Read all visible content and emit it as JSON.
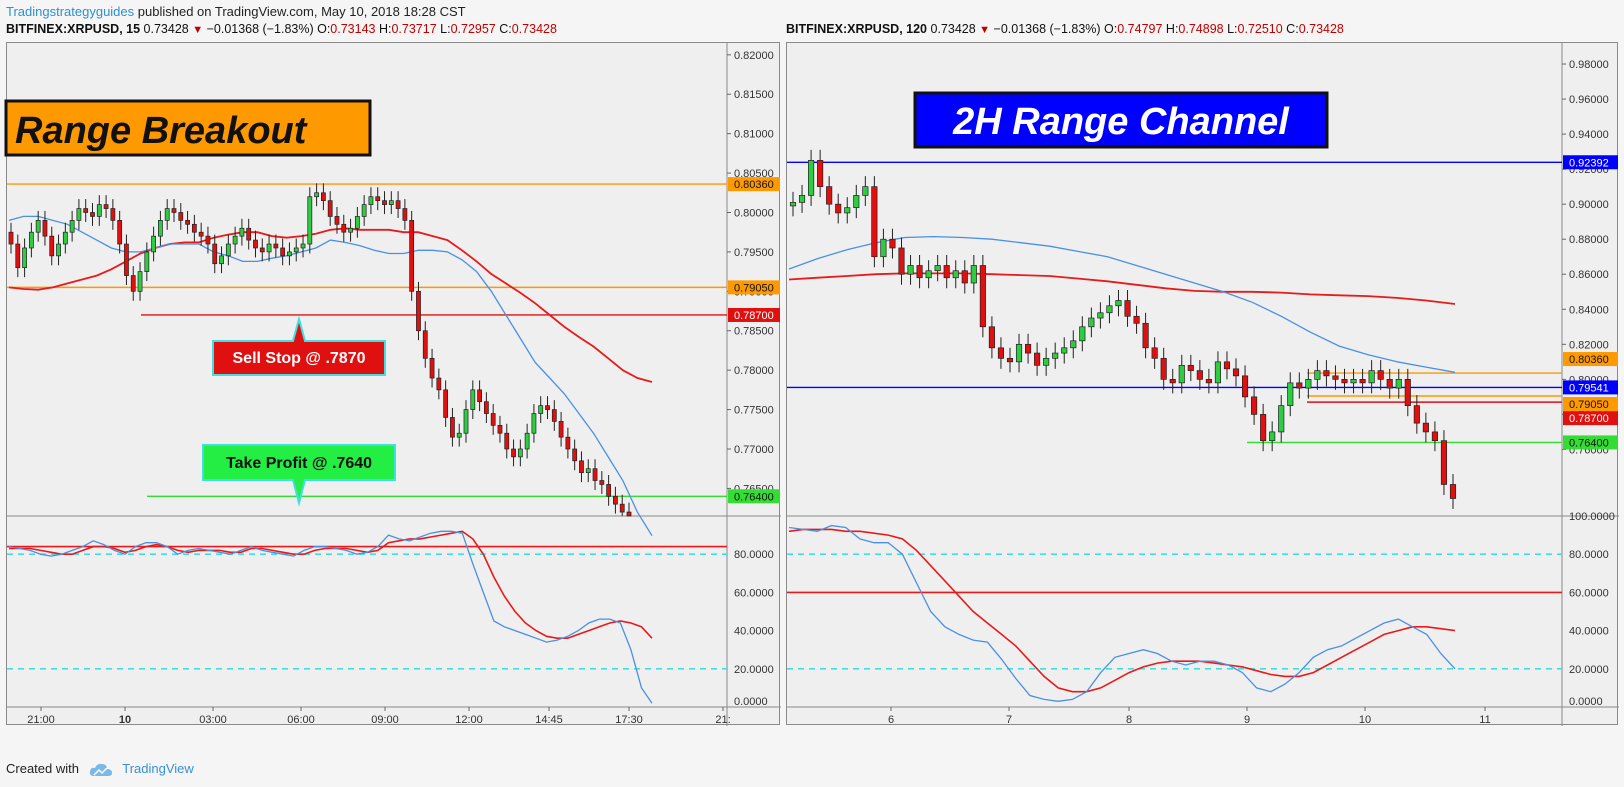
{
  "header": {
    "brand": "Tradingstrategyguides",
    "text": " published on TradingView.com, May 10, 2018 18:28 CST"
  },
  "left": {
    "symbol": "BITFINEX:XRPUSD, 15",
    "price": "0.73428",
    "change": "−0.01368 (−1.83%)",
    "ohlc": {
      "O": "0.73143",
      "H": "0.73717",
      "L": "0.72957",
      "C": "0.73428"
    }
  },
  "right": {
    "symbol": "BITFINEX:XRPUSD, 120",
    "price": "0.73428",
    "change": "−0.01368 (−1.83%)",
    "ohlc": {
      "O": "0.74797",
      "H": "0.74898",
      "L": "0.72510",
      "C": "0.73428"
    }
  },
  "footer": {
    "created": "Created with",
    "tv": "TradingView"
  },
  "colors": {
    "up": "#2ecc40",
    "down": "#e01010",
    "ma_fast": "#4a90e2",
    "ma_slow": "#e81a1a",
    "orange": "#ff9900",
    "blue": "#0000ff",
    "green": "#33dd33",
    "cyan": "#40e0e0"
  },
  "chart_data": [
    {
      "type": "candlestick",
      "title": "Range Breakout",
      "interval": "15",
      "ylim": [
        0.7615,
        0.8215
      ],
      "yticks": [
        "0.82000",
        "0.81500",
        "0.81000",
        "0.80500",
        "0.80000",
        "0.79500",
        "0.79000",
        "0.78500",
        "0.78000",
        "0.77500",
        "0.77000",
        "0.76500"
      ],
      "xticks": [
        "21:00",
        "10",
        "03:00",
        "06:00",
        "09:00",
        "12:00",
        "14:45",
        "17:30",
        "21:"
      ],
      "levels": [
        {
          "value": 0.8036,
          "label": "0.80360",
          "color": "#ff9900"
        },
        {
          "value": 0.7905,
          "label": "0.79050",
          "color": "#ff9900"
        },
        {
          "value": 0.787,
          "label": "0.78700",
          "color": "#e01010"
        },
        {
          "value": 0.764,
          "label": "0.76400",
          "color": "#33dd33"
        }
      ],
      "annotations": [
        "Sell Stop @ .7870",
        "Take Profit @ .7640"
      ],
      "closes": [
        0.796,
        0.793,
        0.7955,
        0.7975,
        0.799,
        0.797,
        0.7945,
        0.796,
        0.7975,
        0.799,
        0.8005,
        0.8,
        0.7995,
        0.801,
        0.8005,
        0.799,
        0.796,
        0.792,
        0.79,
        0.7925,
        0.795,
        0.797,
        0.799,
        0.8005,
        0.8,
        0.799,
        0.7985,
        0.7975,
        0.797,
        0.796,
        0.7935,
        0.7945,
        0.796,
        0.797,
        0.798,
        0.7965,
        0.7955,
        0.795,
        0.796,
        0.7955,
        0.7945,
        0.795,
        0.7955,
        0.796,
        0.802,
        0.8025,
        0.8015,
        0.7995,
        0.7985,
        0.7975,
        0.798,
        0.7995,
        0.801,
        0.802,
        0.8015,
        0.801,
        0.8015,
        0.8005,
        0.799,
        0.79,
        0.785,
        0.7815,
        0.779,
        0.7775,
        0.774,
        0.7715,
        0.772,
        0.775,
        0.7775,
        0.776,
        0.7745,
        0.773,
        0.772,
        0.77,
        0.769,
        0.77,
        0.772,
        0.7745,
        0.7755,
        0.775,
        0.7735,
        0.7715,
        0.77,
        0.7685,
        0.767,
        0.7675,
        0.766,
        0.7655,
        0.764,
        0.763,
        0.762,
        0.7615
      ],
      "ma_fast": [
        0.799,
        0.7995,
        0.7995,
        0.799,
        0.7985,
        0.7975,
        0.7965,
        0.7955,
        0.795,
        0.795,
        0.7955,
        0.796,
        0.796,
        0.796,
        0.795,
        0.7945,
        0.7938,
        0.7938,
        0.7942,
        0.7945,
        0.795,
        0.7955,
        0.7965,
        0.7962,
        0.7958,
        0.7952,
        0.7948,
        0.7948,
        0.7952,
        0.7952,
        0.795,
        0.794,
        0.7925,
        0.79,
        0.787,
        0.784,
        0.781,
        0.779,
        0.777,
        0.7745,
        0.772,
        0.769,
        0.766,
        0.762,
        0.759
      ],
      "ma_slow": [
        0.7905,
        0.7903,
        0.7902,
        0.7905,
        0.791,
        0.7915,
        0.792,
        0.7928,
        0.7938,
        0.7948,
        0.7955,
        0.796,
        0.7962,
        0.7962,
        0.7968,
        0.7972,
        0.7975,
        0.7975,
        0.797,
        0.7968,
        0.797,
        0.7973,
        0.7978,
        0.798,
        0.7978,
        0.7978,
        0.7978,
        0.7975,
        0.7975,
        0.797,
        0.7965,
        0.7952,
        0.7938,
        0.7922,
        0.791,
        0.7898,
        0.7885,
        0.787,
        0.7855,
        0.7842,
        0.783,
        0.7815,
        0.78,
        0.779,
        0.7785
      ],
      "oscillator": {
        "ylim": [
          0,
          100
        ],
        "yticks": [
          "80.0000",
          "60.0000",
          "40.0000",
          "20.0000",
          "0.0000"
        ],
        "levels": [
          20,
          80,
          84
        ],
        "k": [
          84,
          83,
          82,
          80,
          79,
          80,
          82,
          84,
          87,
          85,
          82,
          80,
          84,
          86,
          86,
          84,
          80,
          82,
          83,
          82,
          81,
          80,
          82,
          84,
          82,
          81,
          80,
          79,
          82,
          84,
          84,
          83,
          82,
          80,
          81,
          84,
          90,
          88,
          87,
          89,
          91,
          92,
          92,
          91,
          75,
          60,
          45,
          42,
          40,
          38,
          36,
          34,
          35,
          37,
          40,
          44,
          46,
          46,
          44,
          30,
          10,
          2
        ],
        "d": [
          83,
          83,
          83,
          82,
          81,
          80,
          80,
          82,
          84,
          84,
          83,
          81,
          82,
          84,
          85,
          84,
          82,
          81,
          82,
          82,
          82,
          81,
          81,
          83,
          83,
          82,
          81,
          80,
          80,
          82,
          83,
          83,
          83,
          82,
          81,
          82,
          86,
          87,
          88,
          88,
          89,
          90,
          91,
          92,
          88,
          80,
          68,
          58,
          50,
          44,
          40,
          37,
          36,
          36,
          38,
          40,
          42,
          44,
          45,
          44,
          42,
          36
        ]
      }
    },
    {
      "type": "candlestick",
      "title": "2H Range Channel",
      "interval": "120",
      "ylim": [
        0.722,
        0.992
      ],
      "yticks": [
        "0.98000",
        "0.96000",
        "0.94000",
        "0.92000",
        "0.90000",
        "0.88000",
        "0.86000",
        "0.84000",
        "0.82000",
        "0.80000",
        "0.78000",
        "0.76000"
      ],
      "xticks": [
        "6",
        "7",
        "8",
        "9",
        "10",
        "11"
      ],
      "levels": [
        {
          "value": 0.92392,
          "label": "0.92392",
          "color": "#0000ff"
        },
        {
          "value": 0.8036,
          "label": "0.80360",
          "color": "#ff9900"
        },
        {
          "value": 0.79541,
          "label": "0.79541",
          "color": "#0000ff"
        },
        {
          "value": 0.7905,
          "label": "0.79050",
          "color": "#ff9900"
        },
        {
          "value": 0.787,
          "label": "0.78700",
          "color": "#e01010"
        },
        {
          "value": 0.764,
          "label": "0.76400",
          "color": "#33dd33"
        }
      ],
      "closes": [
        0.901,
        0.905,
        0.925,
        0.91,
        0.9,
        0.895,
        0.898,
        0.905,
        0.91,
        0.87,
        0.88,
        0.875,
        0.86,
        0.865,
        0.858,
        0.862,
        0.865,
        0.858,
        0.862,
        0.855,
        0.865,
        0.83,
        0.818,
        0.812,
        0.81,
        0.82,
        0.815,
        0.808,
        0.812,
        0.815,
        0.818,
        0.822,
        0.83,
        0.835,
        0.838,
        0.842,
        0.845,
        0.836,
        0.832,
        0.818,
        0.812,
        0.8,
        0.798,
        0.808,
        0.805,
        0.8,
        0.798,
        0.81,
        0.806,
        0.802,
        0.79,
        0.78,
        0.765,
        0.77,
        0.785,
        0.798,
        0.795,
        0.8,
        0.805,
        0.802,
        0.8,
        0.798,
        0.8,
        0.798,
        0.805,
        0.8,
        0.795,
        0.8,
        0.785,
        0.775,
        0.77,
        0.765,
        0.74,
        0.732
      ],
      "ma_fast": [
        0.863,
        0.869,
        0.874,
        0.878,
        0.881,
        0.8815,
        0.881,
        0.88,
        0.878,
        0.876,
        0.873,
        0.87,
        0.865,
        0.86,
        0.855,
        0.85,
        0.844,
        0.836,
        0.827,
        0.819,
        0.814,
        0.81,
        0.807,
        0.804
      ],
      "ma_slow": [
        0.857,
        0.858,
        0.859,
        0.86,
        0.8605,
        0.8605,
        0.8605,
        0.86,
        0.8595,
        0.859,
        0.8575,
        0.856,
        0.854,
        0.852,
        0.8505,
        0.85,
        0.85,
        0.8495,
        0.8485,
        0.848,
        0.8475,
        0.8465,
        0.845,
        0.843
      ],
      "oscillator": {
        "ylim": [
          0,
          100
        ],
        "yticks": [
          "100.0000",
          "80.0000",
          "60.0000",
          "40.0000",
          "20.0000",
          "0.0000"
        ],
        "levels": [
          20,
          60,
          80
        ],
        "k": [
          94,
          93,
          92,
          95,
          94,
          88,
          86,
          86,
          80,
          65,
          50,
          42,
          38,
          35,
          34,
          25,
          15,
          6,
          4,
          3,
          4,
          8,
          18,
          26,
          28,
          30,
          28,
          24,
          22,
          24,
          24,
          22,
          18,
          10,
          8,
          12,
          18,
          26,
          30,
          32,
          36,
          40,
          44,
          46,
          42,
          38,
          28,
          20
        ],
        "d": [
          92,
          93,
          93,
          93,
          92,
          92,
          91,
          90,
          88,
          82,
          74,
          66,
          58,
          50,
          44,
          38,
          32,
          24,
          16,
          10,
          8,
          8,
          10,
          14,
          18,
          21,
          23,
          24,
          24,
          24,
          23,
          22,
          21,
          19,
          17,
          16,
          16,
          18,
          22,
          26,
          30,
          34,
          38,
          40,
          42,
          42,
          41,
          40
        ]
      }
    }
  ]
}
